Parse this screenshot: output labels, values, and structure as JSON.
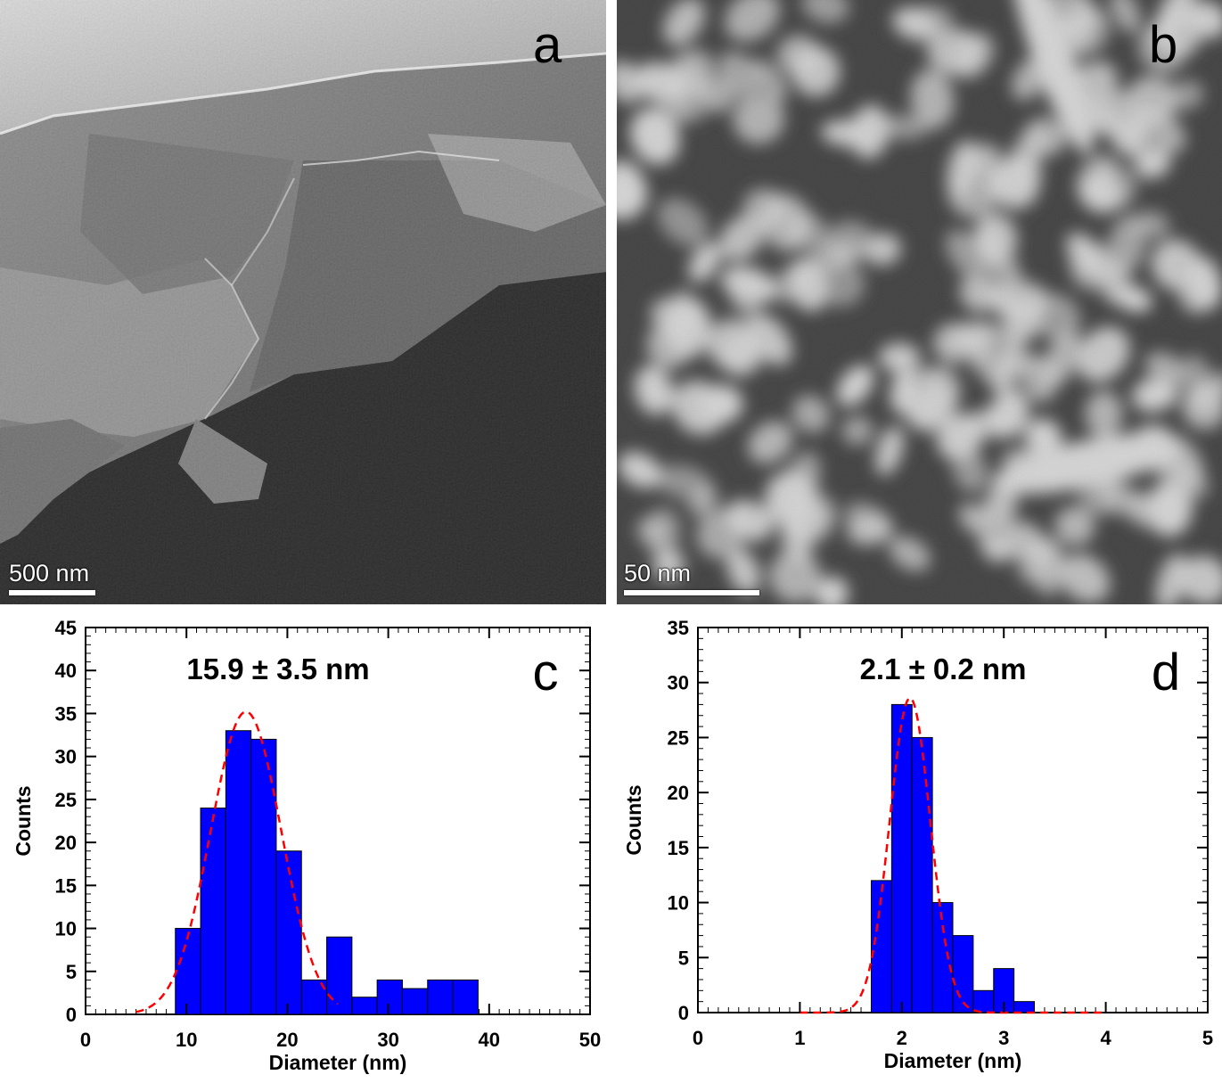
{
  "panels": {
    "a": {
      "letter": "a",
      "scale_label": "500 nm"
    },
    "b": {
      "letter": "b",
      "scale_label": "50 nm"
    }
  },
  "colors": {
    "bar": "#0000ff",
    "bar_edge": "#000000",
    "fit": "#ff0000"
  },
  "chart_data": [
    {
      "type": "bar",
      "panel_letter": "c",
      "annotation": "15.9 ± 3.5 nm",
      "xlabel": "Diameter (nm)",
      "ylabel": "Counts",
      "xlim": [
        0,
        50
      ],
      "ylim": [
        0,
        45
      ],
      "xticks": [
        0,
        10,
        20,
        30,
        40,
        50
      ],
      "yticks": [
        0,
        5,
        10,
        15,
        20,
        25,
        30,
        35,
        40,
        45
      ],
      "bin_width": 2.5,
      "bin_starts": [
        8.9,
        11.4,
        13.9,
        16.4,
        18.9,
        21.4,
        23.9,
        26.4,
        28.9,
        31.4,
        33.9,
        36.4
      ],
      "values": [
        10,
        24,
        33,
        32,
        19,
        4,
        9,
        2,
        4,
        3,
        4,
        4
      ],
      "fit": {
        "type": "gaussian",
        "mean": 15.9,
        "sigma": 3.5,
        "peak": 35.2,
        "x_range": [
          5,
          25
        ]
      }
    },
    {
      "type": "bar",
      "panel_letter": "d",
      "annotation": "2.1 ± 0.2 nm",
      "xlabel": "Diameter (nm)",
      "ylabel": "Counts",
      "xlim": [
        0,
        5
      ],
      "ylim": [
        0,
        35
      ],
      "xticks": [
        0,
        1,
        2,
        3,
        4,
        5
      ],
      "yticks": [
        0,
        5,
        10,
        15,
        20,
        25,
        30,
        35
      ],
      "bin_width": 0.2,
      "bin_starts": [
        1.7,
        1.9,
        2.1,
        2.3,
        2.5,
        2.7,
        2.9,
        3.1
      ],
      "values": [
        12,
        28,
        25,
        10,
        7,
        2,
        4,
        1
      ],
      "fit": {
        "type": "gaussian",
        "mean": 2.08,
        "sigma": 0.2,
        "peak": 28.6,
        "x_range": [
          1,
          4
        ]
      }
    }
  ]
}
